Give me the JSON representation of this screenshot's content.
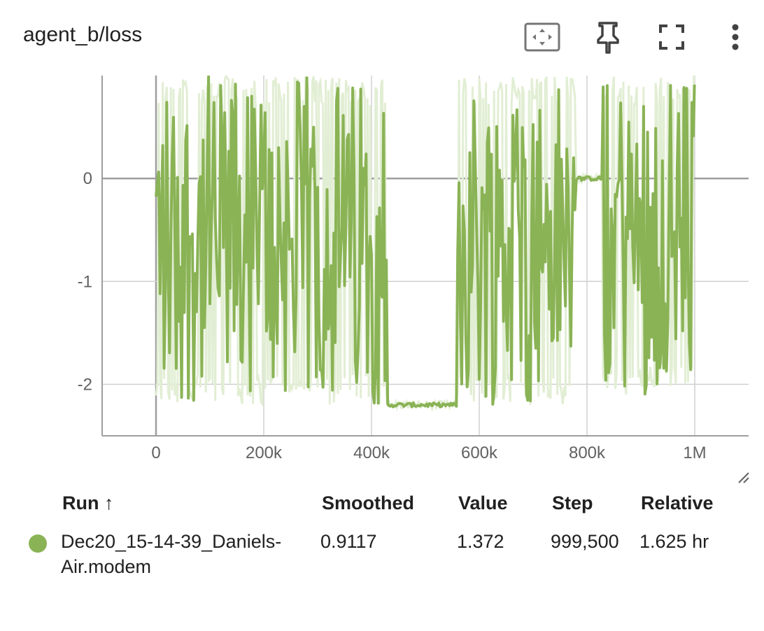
{
  "card": {
    "title": "agent_b/loss"
  },
  "toolbar": {
    "fit_icon": "fit-domain-icon",
    "pin_icon": "pin-icon",
    "fullscreen_icon": "fullscreen-icon",
    "more_icon": "more-vert-icon"
  },
  "colors": {
    "series": "#8ab355",
    "band": "#e2eed4",
    "axis": "#9e9e9e",
    "grid": "#d0d0d0"
  },
  "chart_data": {
    "type": "line",
    "title": "agent_b/loss",
    "x_ticks": [
      {
        "value": 0,
        "label": "0"
      },
      {
        "value": 200000,
        "label": "200k"
      },
      {
        "value": 400000,
        "label": "400k"
      },
      {
        "value": 600000,
        "label": "600k"
      },
      {
        "value": 800000,
        "label": "800k"
      },
      {
        "value": 1000000,
        "label": "1M"
      }
    ],
    "y_ticks": [
      {
        "value": 0,
        "label": "0"
      },
      {
        "value": -1,
        "label": "-1"
      },
      {
        "value": -2,
        "label": "-2"
      }
    ],
    "xlim": [
      -100000,
      1100000
    ],
    "ylim": [
      -2.5,
      1.0
    ],
    "grid": true,
    "series": [
      {
        "name": "Dec20_15-14-39_Daniels-Air.modem",
        "x_range": [
          0,
          999500
        ],
        "segments": [
          {
            "x": [
              0,
              430000
            ],
            "min": -2.2,
            "max": 1.0
          },
          {
            "x": [
              430000,
              560000
            ],
            "level": -2.2
          },
          {
            "x": [
              560000,
              780000
            ],
            "min": -2.2,
            "max": 1.0
          },
          {
            "x": [
              780000,
              830000
            ],
            "level": 0.0
          },
          {
            "x": [
              830000,
              1000000
            ],
            "min": -2.1,
            "max": 1.0
          }
        ],
        "final_smoothed": 0.9117,
        "final_value": 1.372
      }
    ]
  },
  "table": {
    "headers": {
      "run": "Run ↑",
      "smoothed": "Smoothed",
      "value": "Value",
      "step": "Step",
      "relative": "Relative"
    },
    "rows": [
      {
        "run_line1": "Dec20_15-14-39_Daniels-",
        "run_line2": "Air.modem",
        "smoothed": "0.9117",
        "value": "1.372",
        "step": "999,500",
        "relative": "1.625 hr",
        "color": "#8ab355"
      }
    ]
  }
}
